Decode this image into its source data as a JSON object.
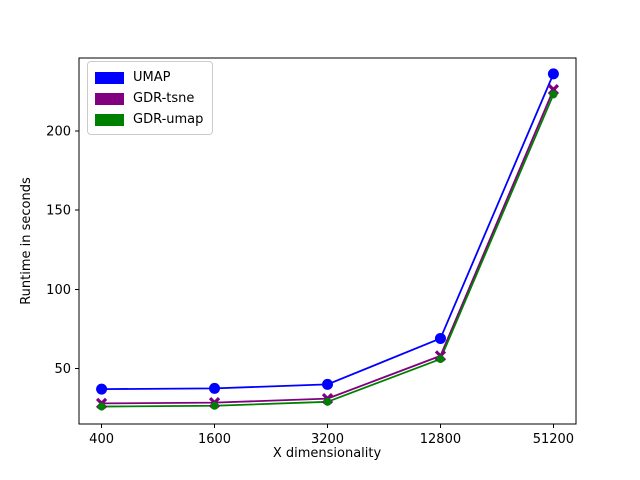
{
  "figure": {
    "background": "#ffffff",
    "text_color": "#000000",
    "spine_color": "#000000",
    "legend_border_color": "#cccccc"
  },
  "chart_data": {
    "type": "line",
    "title": "",
    "xlabel": "X dimensionality",
    "ylabel": "Runtime in seconds",
    "categories": [
      "400",
      "1600",
      "3200",
      "12800",
      "51200"
    ],
    "x_spacing": "even",
    "yticks": [
      50,
      100,
      150,
      200
    ],
    "ylim": [
      15,
      246
    ],
    "grid": false,
    "legend_position": "upper left",
    "series": [
      {
        "name": "UMAP",
        "color": "#0000ff",
        "marker": "circle",
        "marker_size": 5.5,
        "values": [
          37,
          37.5,
          40,
          69,
          236
        ]
      },
      {
        "name": "GDR-tsne",
        "color": "#800080",
        "marker": "x",
        "marker_size": 4.5,
        "values": [
          28,
          28.5,
          31,
          58,
          226
        ]
      },
      {
        "name": "GDR-umap",
        "color": "#008000",
        "marker": "circle",
        "marker_size": 4,
        "values": [
          26,
          26.5,
          29,
          56,
          223
        ]
      }
    ]
  }
}
